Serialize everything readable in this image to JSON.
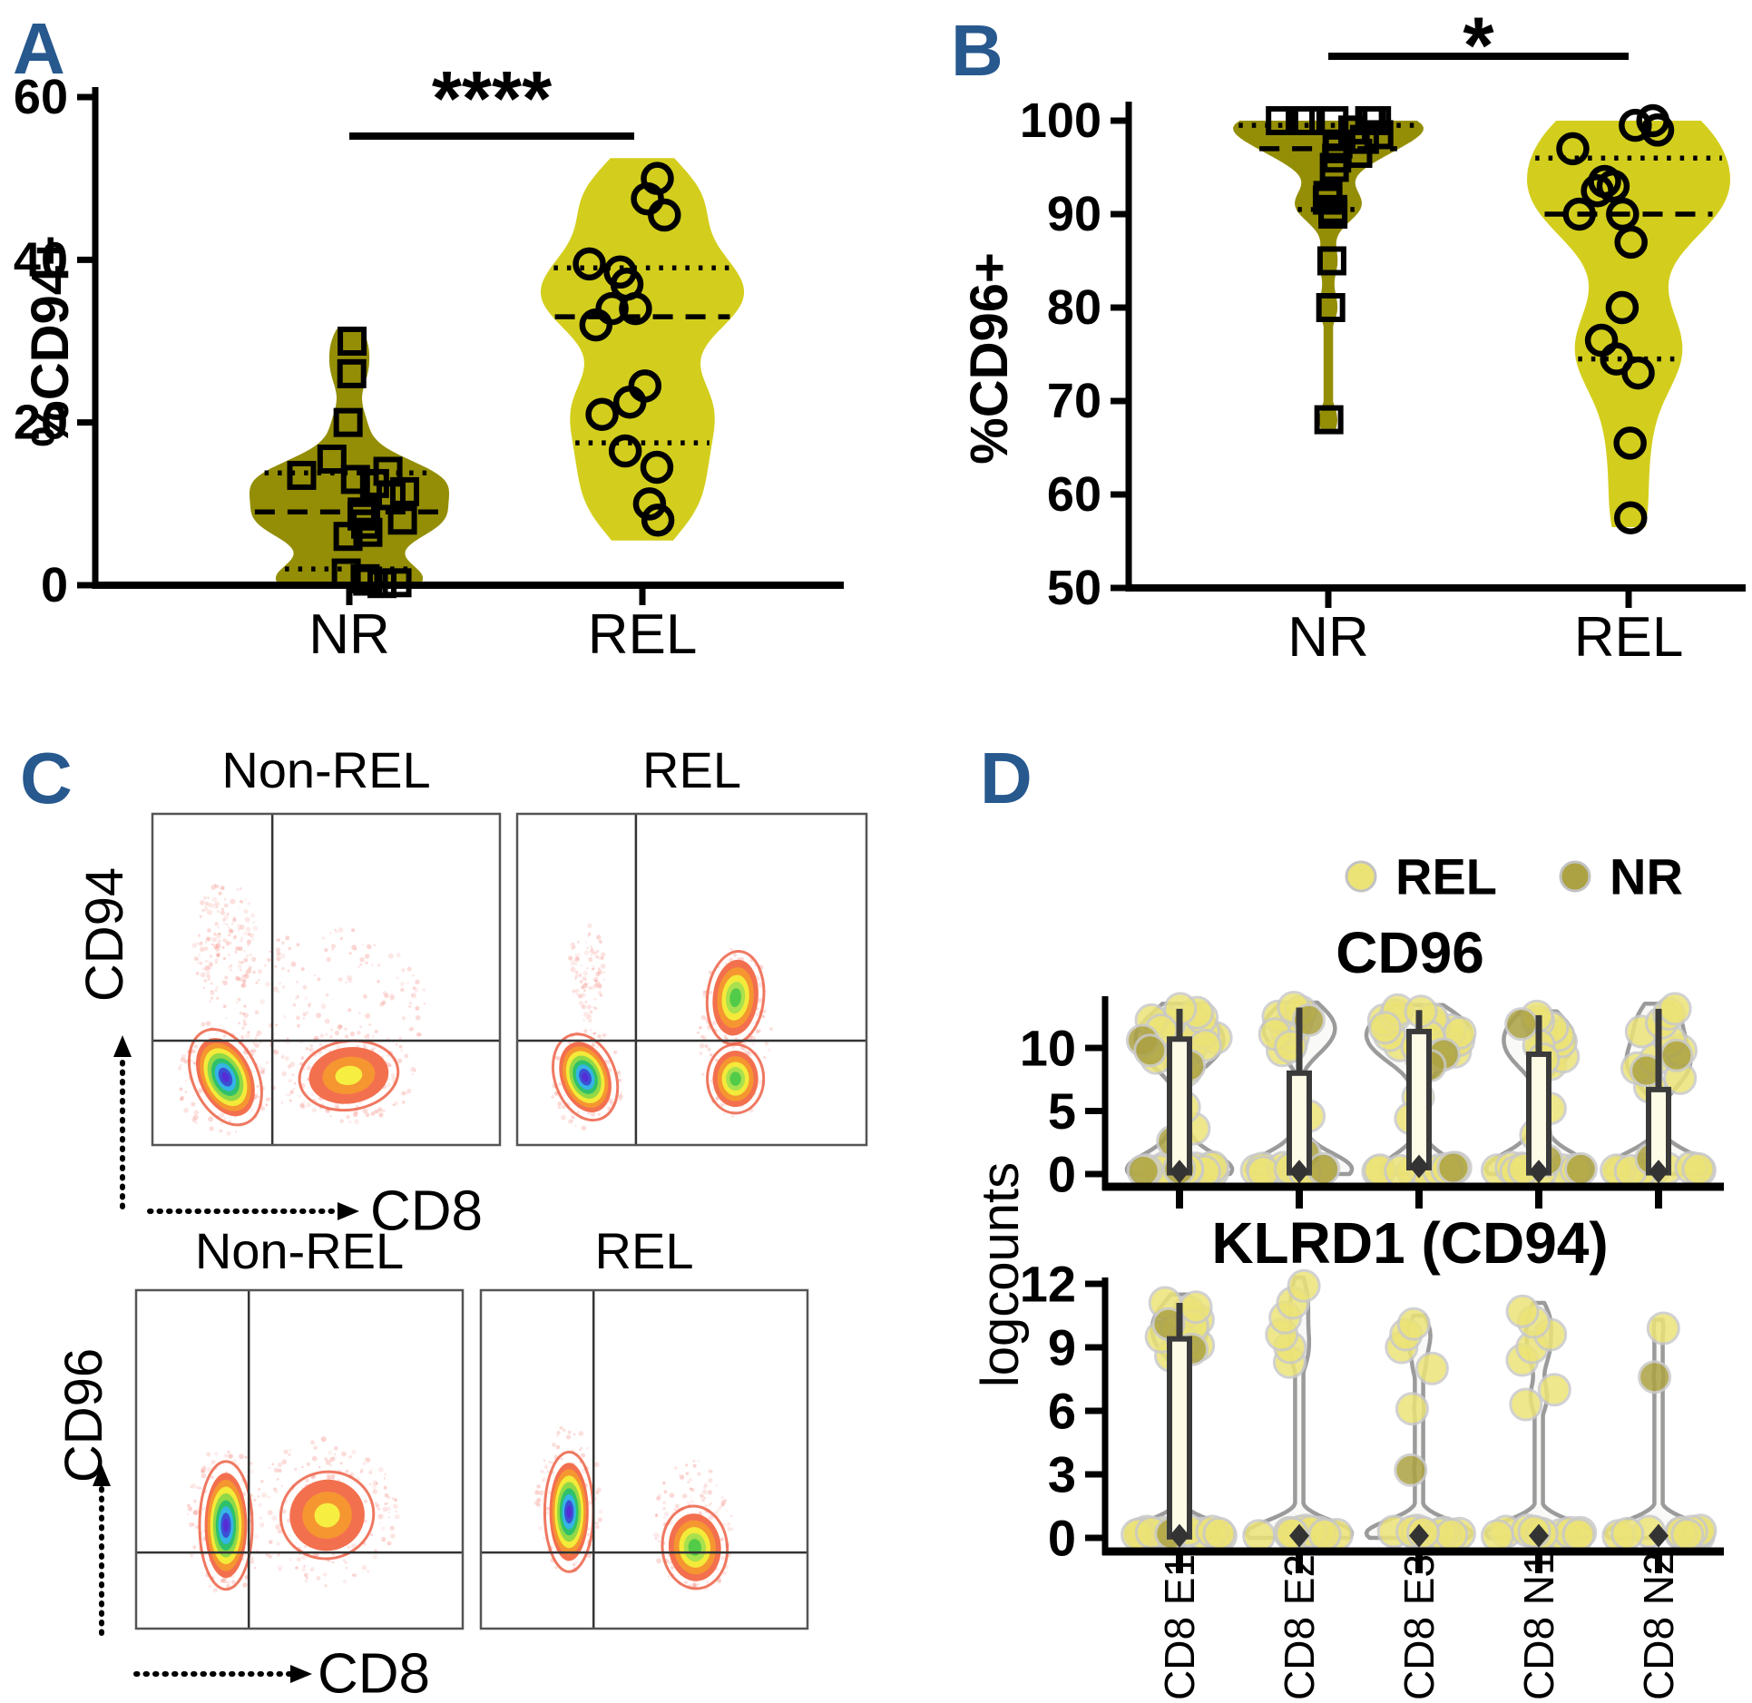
{
  "figure": {
    "background": "#ffffff",
    "panel_letter_color": "#27588e"
  },
  "colors": {
    "nr_violin": "#948e06",
    "rel_violin": "#d3ce1d",
    "d_rel_point": "#ece377",
    "d_nr_point": "#aca243",
    "d_violin_fill": "#f7f7f5",
    "d_violin_stroke": "#9b9b9b",
    "d_box_stroke": "#3a3a3a",
    "d_box_fill": "#fdfae6",
    "haze_dot": "#f59b93"
  },
  "chart_data": [
    {
      "type": "violin",
      "panel_label": "A",
      "ylabel": "%CD94+",
      "yticks": [
        0,
        20,
        40,
        60
      ],
      "ylim": [
        0,
        60
      ],
      "significance": "****",
      "categories": [
        "NR",
        "REL"
      ],
      "groups": [
        {
          "name": "NR",
          "marker": "square",
          "color": "#948e06",
          "points": [
            30,
            26,
            20,
            15.5,
            14,
            13.5,
            13,
            12.5,
            11.5,
            11,
            9,
            8.5,
            8,
            7.5,
            6.5,
            6,
            1.5,
            0.8,
            0.5,
            0.3,
            0.2
          ],
          "median": 9,
          "q1": 2,
          "q3": 13.8
        },
        {
          "name": "REL",
          "marker": "circle",
          "color": "#d3ce1d",
          "points": [
            50,
            47.5,
            45.5,
            39.5,
            38.5,
            37,
            34,
            34,
            32,
            24.5,
            22.5,
            21,
            16.5,
            14.5,
            10,
            8
          ],
          "median": 33,
          "q1": 17.5,
          "q3": 39
        }
      ]
    },
    {
      "type": "violin",
      "panel_label": "B",
      "ylabel": "%CD96+",
      "yticks": [
        50,
        60,
        70,
        80,
        90,
        100
      ],
      "ylim": [
        50,
        100
      ],
      "significance": "*",
      "categories": [
        "NR",
        "REL"
      ],
      "groups": [
        {
          "name": "NR",
          "marker": "square",
          "color": "#948e06",
          "points": [
            100,
            100,
            100,
            100,
            100,
            100,
            100,
            99,
            98.5,
            98,
            97.5,
            97,
            96.5,
            96,
            95,
            92,
            91.5,
            90.5,
            90,
            85,
            80,
            68
          ],
          "median": 97,
          "q1": 90.5,
          "q3": 99.5
        },
        {
          "name": "REL",
          "marker": "circle",
          "color": "#d3ce1d",
          "points": [
            100,
            99.5,
            99,
            97,
            93.5,
            93,
            92.5,
            90,
            90,
            87,
            80,
            76.5,
            74.5,
            73,
            65.5,
            57.5
          ],
          "median": 90,
          "q1": 74.5,
          "q3": 96
        }
      ]
    },
    {
      "type": "flow_contour_grid",
      "panel_label": "C",
      "rows": [
        {
          "ylabel": "CD94",
          "xlabel": "CD8",
          "plots": [
            {
              "title": "Non-REL",
              "vline": 0.345,
              "hline": 0.685,
              "clusters": [
                {
                  "cx": 0.21,
                  "cy": 0.795,
                  "rx": 0.075,
                  "ry": 0.125,
                  "rot": -25,
                  "core": "blue"
                },
                {
                  "cx": 0.565,
                  "cy": 0.79,
                  "rx": 0.115,
                  "ry": 0.085,
                  "rot": -8,
                  "core": "yellow"
                }
              ],
              "hazes": [
                {
                  "cx": 0.21,
                  "cy": 0.4,
                  "rx": 0.09,
                  "ry": 0.2,
                  "n": 160
                },
                {
                  "cx": 0.5,
                  "cy": 0.62,
                  "rx": 0.3,
                  "ry": 0.28,
                  "n": 220
                },
                {
                  "cx": 0.21,
                  "cy": 0.79,
                  "rx": 0.14,
                  "ry": 0.18,
                  "n": 120
                },
                {
                  "cx": 0.57,
                  "cy": 0.79,
                  "rx": 0.19,
                  "ry": 0.14,
                  "n": 140
                }
              ]
            },
            {
              "title": "REL",
              "vline": 0.34,
              "hline": 0.685,
              "clusters": [
                {
                  "cx": 0.195,
                  "cy": 0.795,
                  "rx": 0.07,
                  "ry": 0.11,
                  "rot": -20,
                  "core": "blue"
                },
                {
                  "cx": 0.625,
                  "cy": 0.555,
                  "rx": 0.065,
                  "ry": 0.115,
                  "rot": 6,
                  "core": "green"
                },
                {
                  "cx": 0.625,
                  "cy": 0.8,
                  "rx": 0.065,
                  "ry": 0.085,
                  "rot": 0,
                  "core": "green"
                }
              ],
              "hazes": [
                {
                  "cx": 0.2,
                  "cy": 0.48,
                  "rx": 0.05,
                  "ry": 0.16,
                  "n": 90
                },
                {
                  "cx": 0.625,
                  "cy": 0.66,
                  "rx": 0.11,
                  "ry": 0.26,
                  "n": 160
                },
                {
                  "cx": 0.2,
                  "cy": 0.8,
                  "rx": 0.11,
                  "ry": 0.15,
                  "n": 100
                }
              ]
            }
          ]
        },
        {
          "ylabel": "CD96",
          "xlabel": "CD8",
          "plots": [
            {
              "title": "Non-REL",
              "vline": 0.345,
              "hline": 0.775,
              "clusters": [
                {
                  "cx": 0.275,
                  "cy": 0.695,
                  "rx": 0.065,
                  "ry": 0.155,
                  "rot": 0,
                  "core": "blue"
                },
                {
                  "cx": 0.585,
                  "cy": 0.665,
                  "rx": 0.115,
                  "ry": 0.105,
                  "rot": -12,
                  "core": "yellow"
                }
              ],
              "hazes": [
                {
                  "cx": 0.275,
                  "cy": 0.68,
                  "rx": 0.12,
                  "ry": 0.22,
                  "n": 140
                },
                {
                  "cx": 0.58,
                  "cy": 0.66,
                  "rx": 0.22,
                  "ry": 0.22,
                  "n": 200
                }
              ]
            },
            {
              "title": "REL",
              "vline": 0.345,
              "hline": 0.775,
              "clusters": [
                {
                  "cx": 0.27,
                  "cy": 0.655,
                  "rx": 0.06,
                  "ry": 0.145,
                  "rot": 0,
                  "core": "blue"
                },
                {
                  "cx": 0.655,
                  "cy": 0.76,
                  "rx": 0.08,
                  "ry": 0.1,
                  "rot": -5,
                  "core": "green"
                }
              ],
              "hazes": [
                {
                  "cx": 0.27,
                  "cy": 0.62,
                  "rx": 0.1,
                  "ry": 0.22,
                  "n": 130
                },
                {
                  "cx": 0.655,
                  "cy": 0.7,
                  "rx": 0.13,
                  "ry": 0.2,
                  "n": 150
                }
              ]
            }
          ]
        }
      ]
    },
    {
      "type": "violin_box_strip",
      "panel_label": "D",
      "ylabel": "logcounts",
      "legend": [
        {
          "label": "REL",
          "color": "#ece377"
        },
        {
          "label": "NR",
          "color": "#aca243"
        }
      ],
      "categories": [
        "CD8 E1",
        "CD8 E2",
        "CD8 E3",
        "CD8 N1",
        "CD8 N2"
      ],
      "subplots": [
        {
          "title": "CD96",
          "yticks": [
            0,
            5,
            10
          ],
          "ylim": [
            0,
            13.5
          ],
          "violins": [
            {
              "rel": [
                0.2,
                0.35,
                0.5,
                0.25,
                0.4,
                0.3,
                0.15,
                0.45,
                0.55,
                0.2,
                0.3,
                0.4,
                3.6,
                5.3,
                8.2,
                9,
                9.5,
                10,
                10.4,
                10.8,
                11.2,
                11.6,
                12,
                12.4,
                12.8,
                13.1,
                12.2,
                11.4,
                10.2,
                9.2
              ],
              "nr": [
                10.6,
                9.8,
                8.6,
                2.6,
                0.4,
                0.25
              ],
              "box": {
                "lo": 0.1,
                "hi": 10.7,
                "wh": 13.1,
                "med": 0.2
              }
            },
            {
              "rel": [
                0.2,
                0.3,
                0.45,
                0.25,
                0.5,
                0.35,
                0.15,
                0.4,
                0.3,
                0.2,
                4.6,
                9.8,
                10.3,
                10.9,
                11.5,
                12,
                12.5,
                12.9,
                13.2,
                11.1,
                10.1
              ],
              "nr": [
                12.2,
                1.6,
                0.4
              ],
              "box": {
                "lo": 0.1,
                "hi": 8,
                "wh": 13.2,
                "med": 0.2
              }
            },
            {
              "rel": [
                0.2,
                0.35,
                0.5,
                0.3,
                0.2,
                0.4,
                0.3,
                0.25,
                6.1,
                4.4,
                9.2,
                9.7,
                10.2,
                10.6,
                11,
                11.4,
                11.8,
                12.2,
                12.6,
                13,
                12.3,
                11.6,
                10.9,
                10.1,
                9.4,
                12.9,
                11.2
              ],
              "nr": [
                9.5,
                8.6,
                0.5
              ],
              "box": {
                "lo": 0.5,
                "hi": 11.3,
                "wh": 13,
                "med": 0.6
              }
            },
            {
              "rel": [
                0.2,
                0.3,
                0.45,
                0.3,
                0.2,
                0.5,
                0.35,
                0.2,
                0.4,
                3.1,
                5.2,
                8.7,
                9.3,
                9.9,
                10.5,
                11,
                11.6,
                12.1,
                12.5,
                10.2,
                9.1
              ],
              "nr": [
                11.9,
                1.1,
                0.4
              ],
              "box": {
                "lo": 0.1,
                "hi": 9.5,
                "wh": 12.6,
                "med": 0.2
              }
            },
            {
              "rel": [
                0.2,
                0.35,
                0.3,
                0.45,
                0.2,
                0.5,
                0.3,
                0.25,
                0.4,
                6.9,
                7.6,
                8.4,
                9.1,
                9.8,
                10.6,
                11.3,
                12,
                12.7,
                13.1
              ],
              "nr": [
                9.4,
                8.2,
                1.2
              ],
              "box": {
                "lo": 0.1,
                "hi": 6.7,
                "wh": 13.1,
                "med": 0.2
              }
            }
          ]
        },
        {
          "title": "KLRD1 (CD94)",
          "yticks": [
            0,
            3,
            6,
            9,
            12
          ],
          "ylim": [
            0,
            12.3
          ],
          "violins": [
            {
              "rel": [
                0.1,
                0.2,
                0.3,
                0.15,
                0.25,
                0.1,
                0.35,
                0.2,
                0.3,
                0.15,
                0.25,
                0.2,
                8.6,
                9.1,
                9.5,
                9.9,
                10.3,
                10.7,
                11.1,
                9.3,
                10,
                10.9
              ],
              "nr": [
                8.9,
                10.1,
                0.2
              ],
              "box": {
                "lo": 0.05,
                "hi": 9.4,
                "wh": 11.1,
                "med": 0.1
              }
            },
            {
              "rel": [
                0.1,
                0.2,
                0.3,
                0.15,
                0.25,
                0.35,
                0.1,
                0.2,
                0.3,
                0.25,
                0.15,
                0.2,
                8.3,
                9,
                9.6,
                10.4,
                11.1,
                11.9
              ],
              "nr": [],
              "box": {
                "lo": 0,
                "hi": 0,
                "wh": 0,
                "med": 0.1
              }
            },
            {
              "rel": [
                0.1,
                0.2,
                0.3,
                0.15,
                0.25,
                0.1,
                0.35,
                0.2,
                0.3,
                0.15,
                0.25,
                6.1,
                8,
                9,
                9.6,
                10.1
              ],
              "nr": [
                3.2
              ],
              "box": {
                "lo": 0,
                "hi": 0,
                "wh": 0,
                "med": 0.1
              }
            },
            {
              "rel": [
                0.1,
                0.2,
                0.3,
                0.15,
                0.25,
                0.35,
                0.1,
                0.2,
                0.3,
                0.25,
                0.15,
                6.3,
                7,
                8.4,
                9,
                9.6,
                10.2,
                10.7
              ],
              "nr": [],
              "box": {
                "lo": 0,
                "hi": 0,
                "wh": 0,
                "med": 0.1
              }
            },
            {
              "rel": [
                0.1,
                0.2,
                0.3,
                0.15,
                0.25,
                0.1,
                0.35,
                0.2,
                0.3,
                0.25,
                0.15,
                9.9
              ],
              "nr": [
                7.6
              ],
              "box": {
                "lo": 0,
                "hi": 0,
                "wh": 0,
                "med": 0.1
              }
            }
          ]
        }
      ]
    }
  ]
}
